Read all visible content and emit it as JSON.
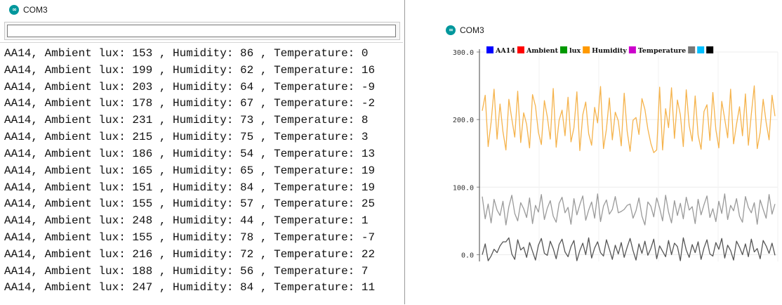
{
  "monitor": {
    "title": "COM3",
    "logo": "arduino-logo-icon",
    "input_value": "",
    "lines": [
      "AA14, Ambient lux: 153 , Humidity: 86 , Temperature: 0",
      "AA14, Ambient lux: 199 , Humidity: 62 , Temperature: 16",
      "AA14, Ambient lux: 203 , Humidity: 64 , Temperature: -9",
      "AA14, Ambient lux: 178 , Humidity: 67 , Temperature: -2",
      "AA14, Ambient lux: 231 , Humidity: 73 , Temperature: 8",
      "AA14, Ambient lux: 215 , Humidity: 75 , Temperature: 3",
      "AA14, Ambient lux: 186 , Humidity: 54 , Temperature: 13",
      "AA14, Ambient lux: 165 , Humidity: 65 , Temperature: 19",
      "AA14, Ambient lux: 151 , Humidity: 84 , Temperature: 19",
      "AA14, Ambient lux: 155 , Humidity: 57 , Temperature: 25",
      "AA14, Ambient lux: 248 , Humidity: 44 , Temperature: 1",
      "AA14, Ambient lux: 155 , Humidity: 78 , Temperature: -7",
      "AA14, Ambient lux: 216 , Humidity: 72 , Temperature: 22",
      "AA14, Ambient lux: 188 , Humidity: 56 , Temperature: 7",
      "AA14, Ambient lux: 247 , Humidity: 84 , Temperature: 11"
    ]
  },
  "plotter": {
    "title": "COM3",
    "logo": "arduino-logo-icon"
  },
  "chart_data": {
    "type": "line",
    "title": "",
    "xlabel": "",
    "ylabel": "",
    "ylim": [
      -10,
      300
    ],
    "yticks": [
      0,
      100,
      200,
      300
    ],
    "ytick_labels": [
      "0.0",
      "100.0",
      "200.0",
      "300.0"
    ],
    "grid": true,
    "legend_position": "top",
    "legend": [
      {
        "label": "AA14",
        "color": "#0000ff"
      },
      {
        "label": "Ambient",
        "color": "#ff0000"
      },
      {
        "label": "lux",
        "color": "#009900"
      },
      {
        "label": "Humidity",
        "color": "#ff9900"
      },
      {
        "label": "Temperature",
        "color": "#cc00cc"
      }
    ],
    "legend_trailing_swatches": [
      "#777777",
      "#00bfff",
      "#000000"
    ],
    "x": [
      0,
      1,
      2,
      3,
      4,
      5,
      6,
      7,
      8,
      9,
      10,
      11,
      12,
      13,
      14,
      15,
      16,
      17,
      18,
      19,
      20,
      21,
      22,
      23,
      24,
      25,
      26,
      27,
      28,
      29,
      30,
      31,
      32,
      33,
      34,
      35,
      36,
      37,
      38,
      39,
      40,
      41,
      42,
      43,
      44,
      45,
      46,
      47,
      48,
      49,
      50,
      51,
      52,
      53,
      54,
      55,
      56,
      57,
      58,
      59,
      60,
      61,
      62,
      63,
      64,
      65,
      66,
      67,
      68,
      69,
      70,
      71,
      72,
      73,
      74,
      75,
      76,
      77,
      78,
      79,
      80,
      81,
      82,
      83,
      84,
      85,
      86,
      87,
      88,
      89,
      90,
      91,
      92,
      93,
      94,
      95,
      96,
      97,
      98,
      99
    ],
    "series": [
      {
        "name": "Ambient lux",
        "color": "#f5b34c",
        "values": [
          213,
          236,
          160,
          196,
          245,
          171,
          223,
          182,
          155,
          230,
          201,
          174,
          242,
          166,
          210,
          193,
          158,
          237,
          220,
          181,
          163,
          228,
          204,
          171,
          246,
          159,
          199,
          214,
          176,
          233,
          167,
          188,
          241,
          154,
          207,
          226,
          179,
          162,
          218,
          195,
          249,
          157,
          186,
          232,
          170,
          211,
          198,
          161,
          239,
          183,
          153,
          199,
          203,
          178,
          231,
          215,
          186,
          165,
          151,
          155,
          248,
          155,
          216,
          188,
          247,
          172,
          229,
          207,
          160,
          244,
          191,
          168,
          235,
          177,
          156,
          212,
          222,
          169,
          240,
          185,
          158,
          227,
          201,
          173,
          245,
          164,
          193,
          219,
          176,
          238,
          162,
          208,
          250,
          157,
          181,
          230,
          196,
          170,
          236,
          205
        ]
      },
      {
        "name": "Humidity",
        "color": "#9a9a9a",
        "values": [
          86,
          53,
          75,
          47,
          82,
          66,
          58,
          79,
          44,
          71,
          88,
          61,
          50,
          77,
          68,
          55,
          84,
          46,
          73,
          63,
          89,
          52,
          69,
          80,
          57,
          48,
          76,
          85,
          62,
          70,
          45,
          83,
          59,
          74,
          87,
          51,
          66,
          78,
          54,
          90,
          49,
          72,
          81,
          60,
          67,
          86,
          62,
          64,
          67,
          73,
          75,
          54,
          65,
          84,
          57,
          44,
          78,
          72,
          56,
          84,
          69,
          50,
          88,
          63,
          47,
          80,
          58,
          76,
          53,
          85,
          66,
          71,
          46,
          82,
          59,
          74,
          87,
          55,
          68,
          49,
          79,
          61,
          90,
          52,
          73,
          65,
          83,
          57,
          48,
          86,
          70,
          62,
          77,
          45,
          81,
          67,
          54,
          89,
          60,
          75
        ]
      },
      {
        "name": "Temperature",
        "color": "#555555",
        "values": [
          0,
          16,
          -9,
          -2,
          8,
          3,
          13,
          19,
          19,
          25,
          1,
          -7,
          22,
          7,
          11,
          -4,
          18,
          5,
          -8,
          14,
          24,
          2,
          -1,
          20,
          9,
          -6,
          15,
          23,
          4,
          -3,
          12,
          21,
          -9,
          6,
          17,
          0,
          25,
          -5,
          10,
          19,
          3,
          -2,
          22,
          8,
          -7,
          14,
          1,
          18,
          -4,
          11,
          24,
          6,
          -8,
          16,
          2,
          20,
          -1,
          9,
          23,
          -6,
          13,
          5,
          -3,
          21,
          0,
          17,
          12,
          -9,
          25,
          7,
          -4,
          15,
          3,
          19,
          -7,
          10,
          22,
          1,
          -2,
          18,
          8,
          24,
          -5,
          14,
          6,
          -8,
          20,
          11,
          0,
          16,
          -3,
          23,
          4,
          9,
          -6,
          21,
          13,
          2,
          17,
          -1
        ]
      }
    ]
  }
}
